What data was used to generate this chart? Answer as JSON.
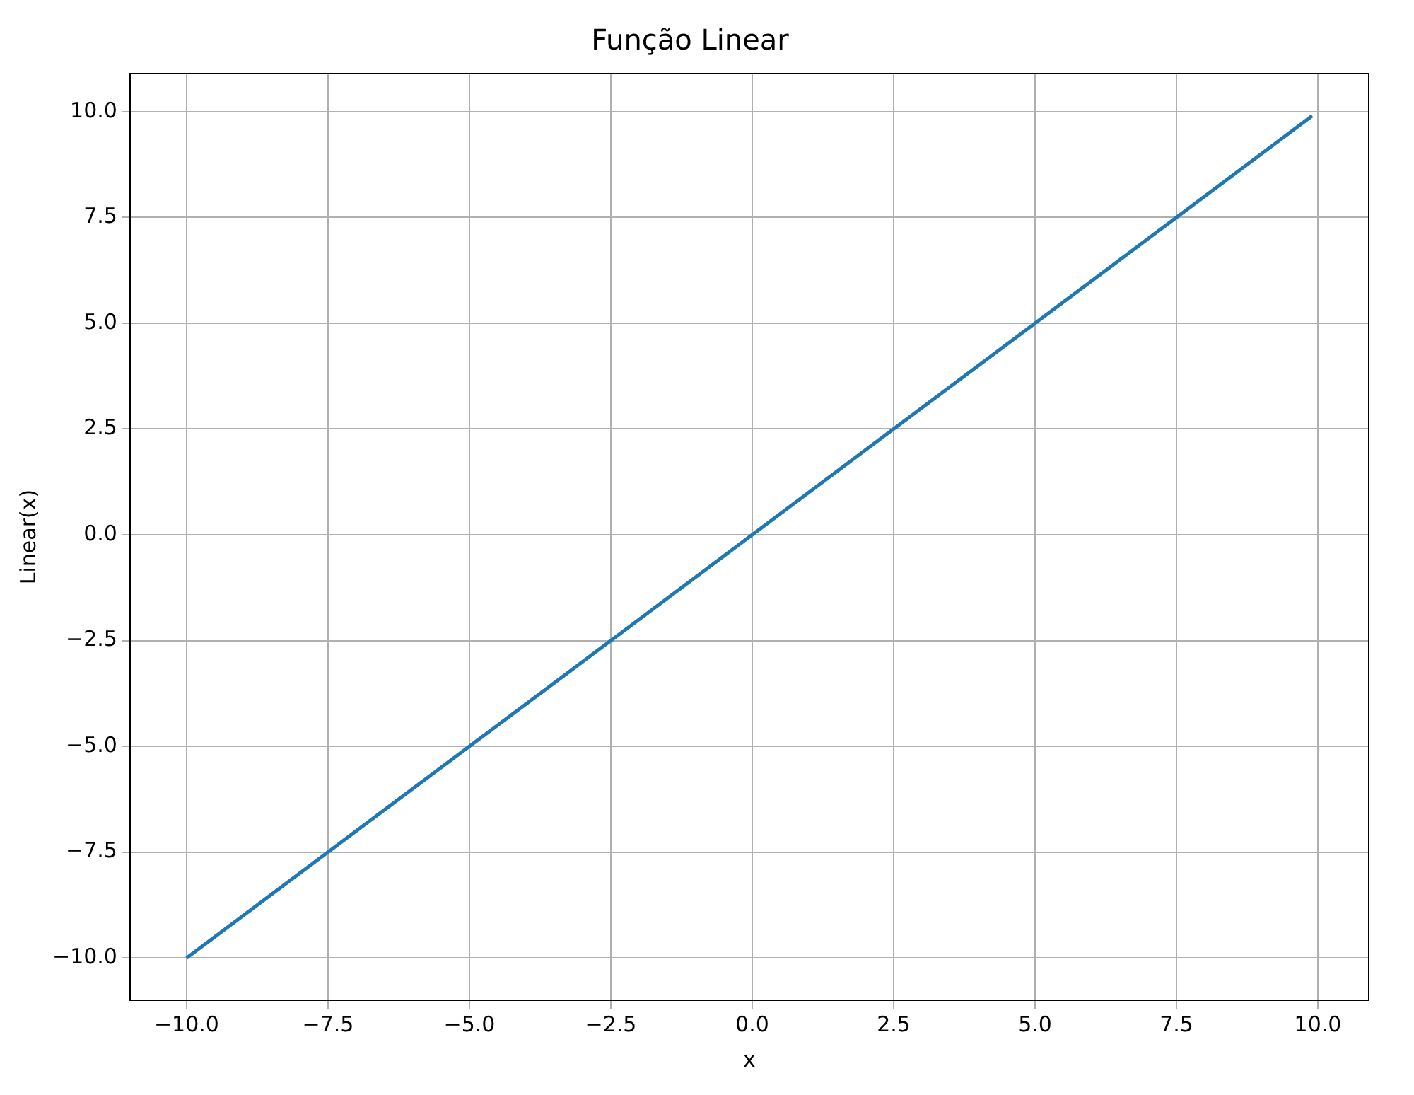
{
  "chart_data": {
    "type": "line",
    "title": "Função Linear",
    "xlabel": "x",
    "ylabel": "Linear(x)",
    "x": [
      -10,
      9.9
    ],
    "series": [
      {
        "color": "#1f77b4",
        "values": [
          -10,
          9.9
        ]
      }
    ],
    "xlim": [
      -11,
      10.9
    ],
    "ylim": [
      -11,
      10.9
    ],
    "xticks": [
      {
        "value": -10,
        "label": "−10.0"
      },
      {
        "value": -7.5,
        "label": "−7.5"
      },
      {
        "value": -5,
        "label": "−5.0"
      },
      {
        "value": -2.5,
        "label": "−2.5"
      },
      {
        "value": 0,
        "label": "0.0"
      },
      {
        "value": 2.5,
        "label": "2.5"
      },
      {
        "value": 5,
        "label": "5.0"
      },
      {
        "value": 7.5,
        "label": "7.5"
      },
      {
        "value": 10,
        "label": "10.0"
      }
    ],
    "yticks": [
      {
        "value": -10,
        "label": "−10.0"
      },
      {
        "value": -7.5,
        "label": "−7.5"
      },
      {
        "value": -5,
        "label": "−5.0"
      },
      {
        "value": -2.5,
        "label": "−2.5"
      },
      {
        "value": 0,
        "label": "0.0"
      },
      {
        "value": 2.5,
        "label": "2.5"
      },
      {
        "value": 5,
        "label": "5.0"
      },
      {
        "value": 7.5,
        "label": "7.5"
      },
      {
        "value": 10,
        "label": "10.0"
      }
    ],
    "grid": true,
    "legend": false,
    "marker": "none",
    "line_style": "solid"
  }
}
